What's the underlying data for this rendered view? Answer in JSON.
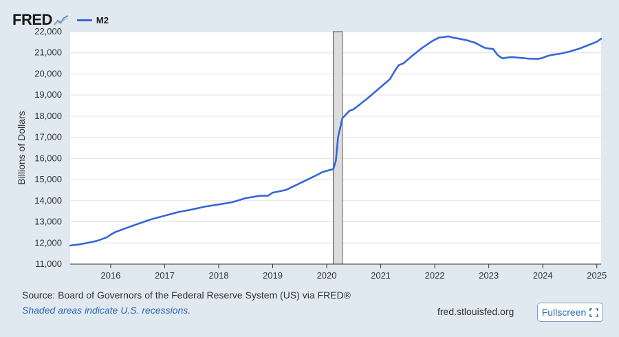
{
  "header": {
    "logo": "FRED",
    "legend_label": "M2"
  },
  "colors": {
    "series": "#3566d8",
    "recession": "#dcdcdc",
    "grid": "#e0e0e0",
    "plot_bg": "#ffffff"
  },
  "footer": {
    "source": "Source: Board of Governors of the Federal Reserve System (US) via FRED®",
    "note": "Shaded areas indicate U.S. recessions.",
    "site": "fred.stlouisfed.org",
    "fullscreen_label": "Fullscreen"
  },
  "chart_data": {
    "type": "line",
    "title": "",
    "xlabel": "",
    "ylabel": "Billions of Dollars",
    "xlim": [
      2015.25,
      2025.08
    ],
    "ylim": [
      11000,
      22000
    ],
    "yticks": [
      11000,
      12000,
      13000,
      14000,
      15000,
      16000,
      17000,
      18000,
      19000,
      20000,
      21000,
      22000
    ],
    "ytick_labels": [
      "11,000",
      "12,000",
      "13,000",
      "14,000",
      "15,000",
      "16,000",
      "17,000",
      "18,000",
      "19,000",
      "20,000",
      "21,000",
      "22,000"
    ],
    "xticks": [
      2016,
      2017,
      2018,
      2019,
      2020,
      2021,
      2022,
      2023,
      2024,
      2025
    ],
    "xtick_labels": [
      "2016",
      "2017",
      "2018",
      "2019",
      "2020",
      "2021",
      "2022",
      "2023",
      "2024",
      "2025"
    ],
    "recessions": [
      [
        2020.12,
        2020.29
      ]
    ],
    "series": [
      {
        "name": "M2",
        "x": [
          2015.25,
          2015.42,
          2015.58,
          2015.75,
          2015.92,
          2016.0,
          2016.08,
          2016.25,
          2016.5,
          2016.75,
          2017.0,
          2017.25,
          2017.5,
          2017.75,
          2018.0,
          2018.25,
          2018.5,
          2018.75,
          2018.92,
          2019.0,
          2019.25,
          2019.5,
          2019.75,
          2019.92,
          2020.08,
          2020.12,
          2020.17,
          2020.21,
          2020.29,
          2020.42,
          2020.5,
          2020.75,
          2021.0,
          2021.17,
          2021.25,
          2021.33,
          2021.42,
          2021.58,
          2021.75,
          2021.92,
          2022.0,
          2022.08,
          2022.17,
          2022.25,
          2022.33,
          2022.42,
          2022.58,
          2022.75,
          2022.92,
          2023.0,
          2023.08,
          2023.17,
          2023.25,
          2023.42,
          2023.58,
          2023.75,
          2023.92,
          2024.0,
          2024.08,
          2024.17,
          2024.33,
          2024.5,
          2024.67,
          2024.83,
          2025.0,
          2025.08
        ],
        "values": [
          11880,
          11930,
          12010,
          12100,
          12260,
          12390,
          12510,
          12670,
          12900,
          13120,
          13290,
          13460,
          13580,
          13720,
          13820,
          13930,
          14120,
          14230,
          14240,
          14380,
          14510,
          14820,
          15130,
          15350,
          15470,
          15480,
          15900,
          17000,
          17900,
          18250,
          18330,
          18830,
          19380,
          19750,
          20100,
          20410,
          20500,
          20850,
          21200,
          21500,
          21620,
          21720,
          21740,
          21780,
          21720,
          21680,
          21600,
          21470,
          21240,
          21200,
          21180,
          20880,
          20740,
          20800,
          20760,
          20720,
          20710,
          20760,
          20840,
          20900,
          20960,
          21060,
          21190,
          21350,
          21520,
          21660
        ]
      }
    ]
  }
}
